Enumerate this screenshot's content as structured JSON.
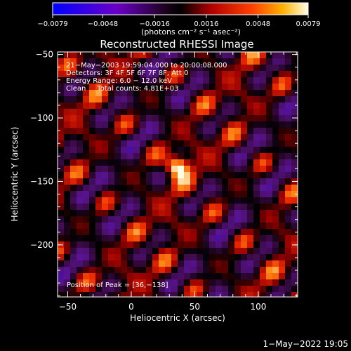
{
  "chart_data": {
    "type": "heatmap",
    "title": "Reconstructed RHESSI Image",
    "xlabel": "Heliocentric X (arcsec)",
    "ylabel": "Heliocentric Y (arcsec)",
    "xlim": [
      -58,
      131
    ],
    "ylim": [
      -241,
      -48
    ],
    "x_ticks": [
      -50,
      0,
      50,
      100
    ],
    "y_ticks": [
      -50,
      -100,
      -150,
      -200
    ],
    "colorbar": {
      "min": -0.0079,
      "max": 0.0079,
      "ticks": [
        -0.0079,
        -0.0048,
        -0.0016,
        0.0016,
        0.0048,
        0.0079
      ],
      "tick_labels": [
        "−0.0079",
        "−0.0048",
        "−0.0016",
        "0.0016",
        "0.0048",
        "0.0079"
      ],
      "units_label": "(photons cm⁻² s⁻¹ asec⁻²)"
    },
    "peak": {
      "x": 36,
      "y": -138
    },
    "annotations": [
      "21−May−2003 19:59:04.000 to 20:00:08.000",
      "Detectors: 3F 4F 5F 6F 7F 8F, Att 0",
      "Energy Range: 6.0 − 12.0 keV",
      "Clean     Total counts: 4.81E+03"
    ],
    "peak_text": "Position of Peak = [36,−138]",
    "footer": "1−May−2022 19:05",
    "colors": {
      "low": "#0000ff",
      "mid_low": "#800080",
      "mid": "#000000",
      "mid_high": "#ff3000",
      "high": "#ffffe0"
    }
  }
}
